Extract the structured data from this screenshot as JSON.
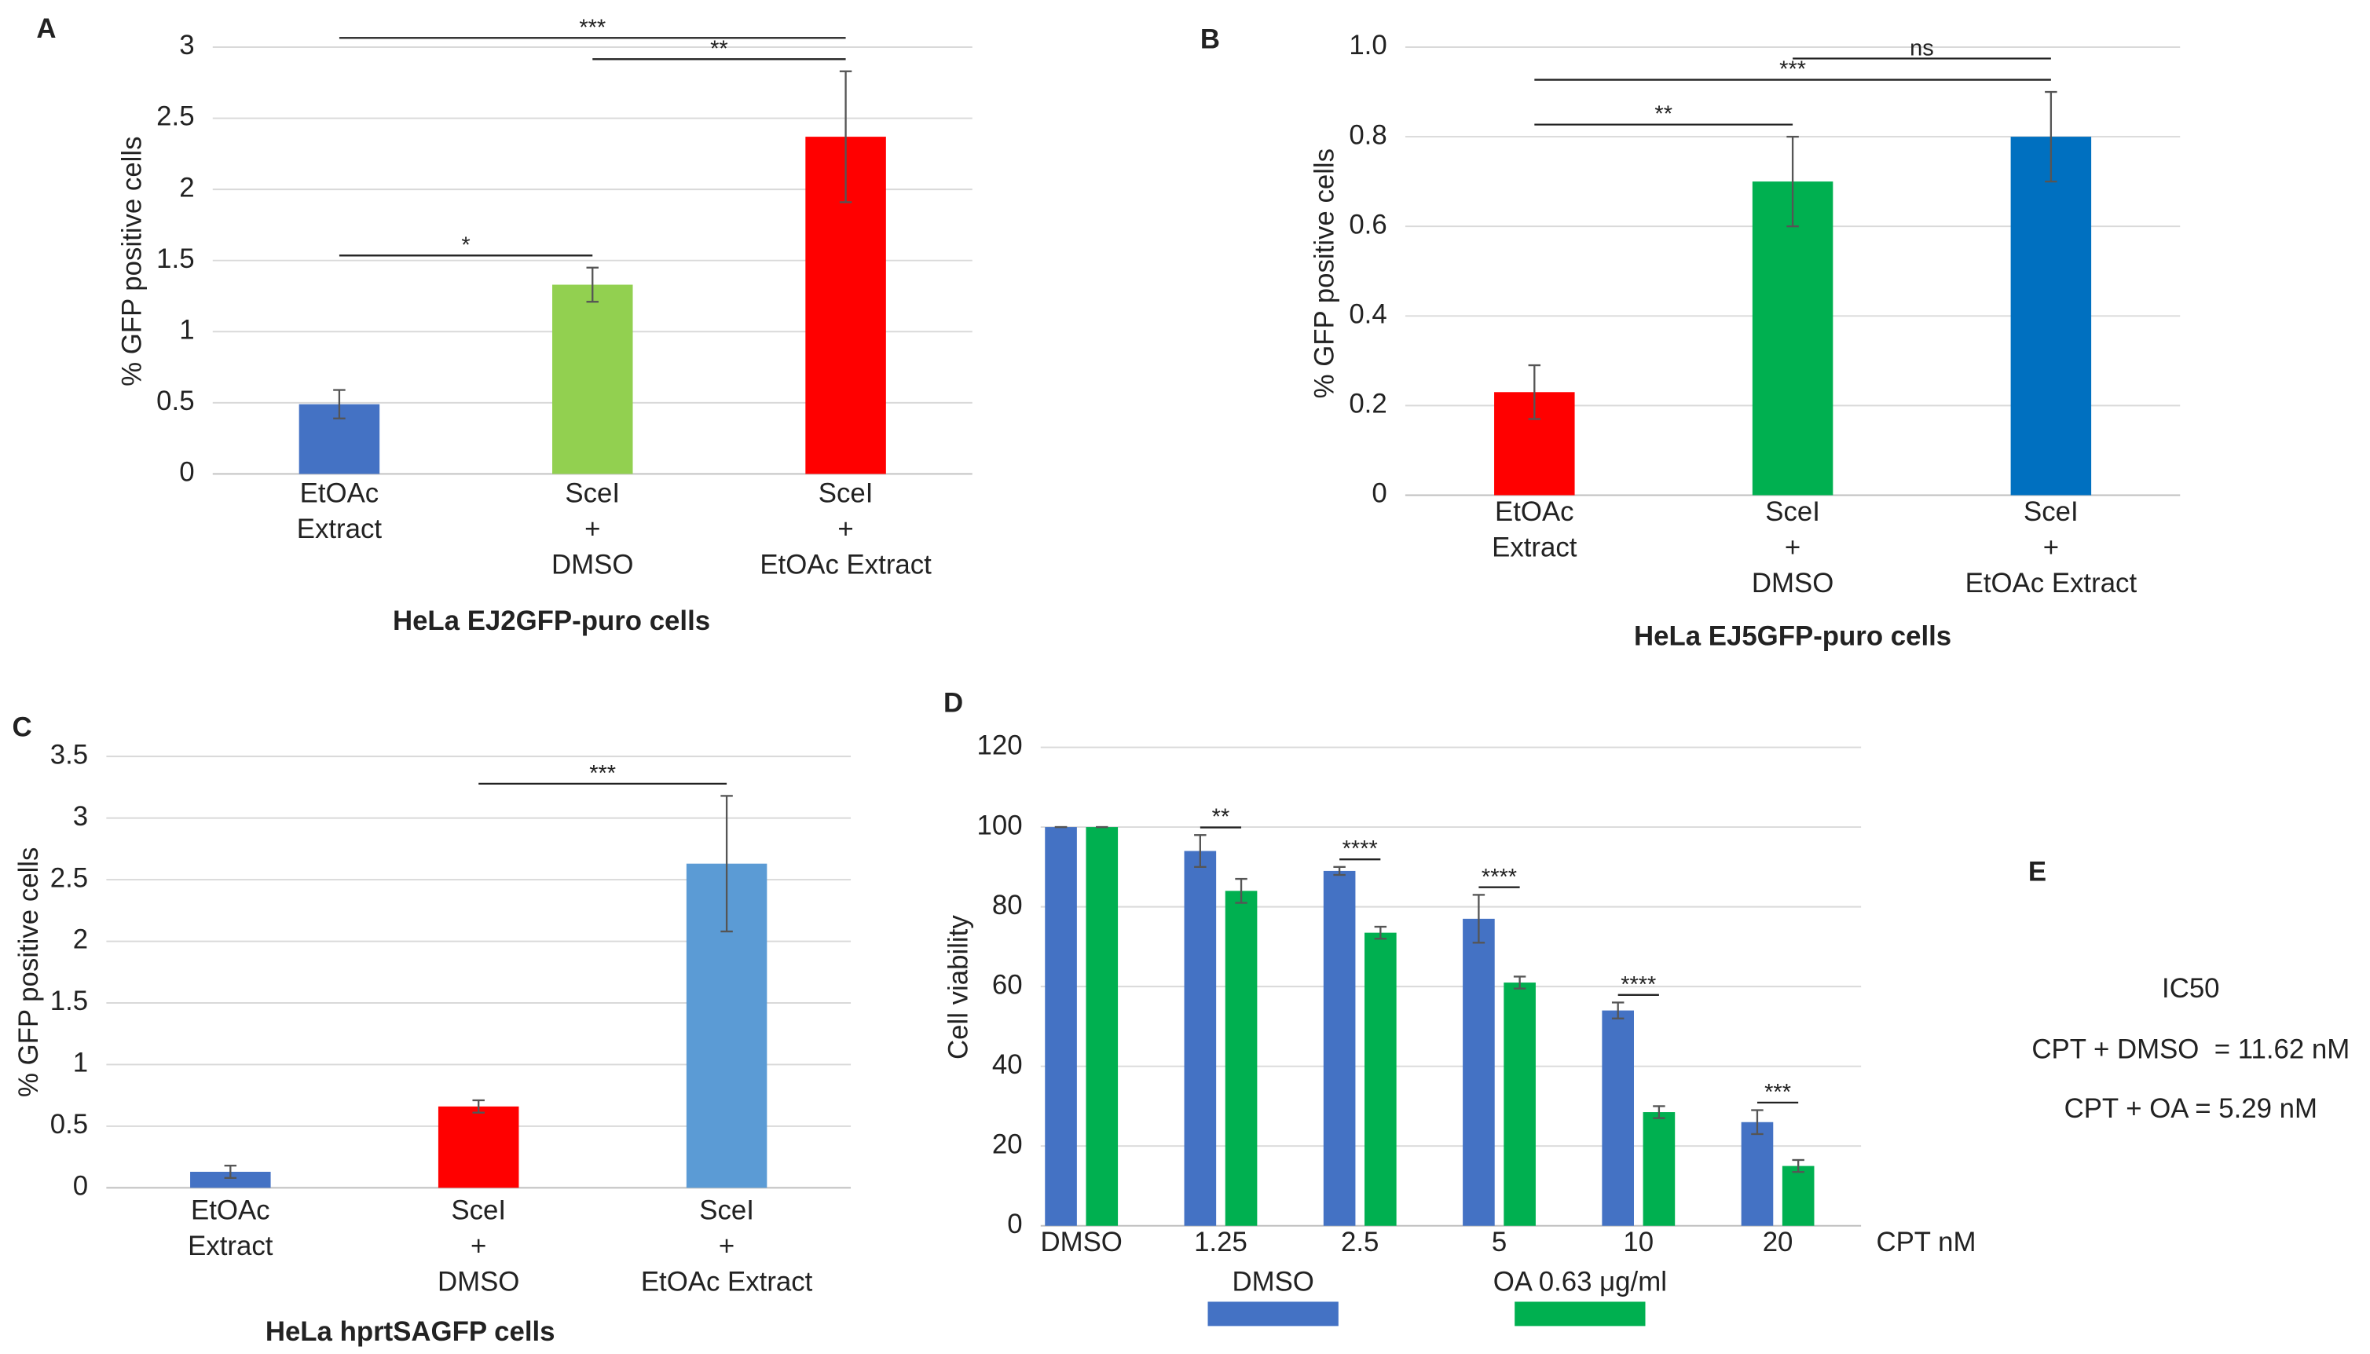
{
  "chart_data": [
    {
      "type": "bar",
      "panel": "A",
      "y_label": "% GFP positive cells",
      "x_label": "HeLa EJ2GFP-puro cells",
      "categories": [
        [
          "EtOAc",
          "Extract"
        ],
        [
          "SceI",
          "+",
          "DMSO"
        ],
        [
          "SceI",
          "+",
          "EtOAc Extract"
        ]
      ],
      "values": [
        0.49,
        1.33,
        2.37
      ],
      "errors": [
        0.1,
        0.12,
        0.46
      ],
      "colors": [
        "#4472c4",
        "#92d050",
        "#ff0000"
      ],
      "ylim": [
        0,
        3
      ],
      "yticks": [
        0,
        0.5,
        1,
        1.5,
        2,
        2.5,
        3
      ],
      "grid": true,
      "comparisons": [
        {
          "from": 0,
          "to": 1,
          "label": "*"
        },
        {
          "from": 1,
          "to": 2,
          "label": "**"
        },
        {
          "from": 0,
          "to": 2,
          "label": "***"
        }
      ]
    },
    {
      "type": "bar",
      "panel": "B",
      "y_label": "% GFP positive cells",
      "x_label": "HeLa EJ5GFP-puro cells",
      "categories": [
        [
          "EtOAc",
          "Extract"
        ],
        [
          "SceI",
          "+",
          "DMSO"
        ],
        [
          "SceI",
          "+",
          "EtOAc Extract"
        ]
      ],
      "values": [
        0.23,
        0.7,
        0.8
      ],
      "errors": [
        0.06,
        0.1,
        0.1
      ],
      "colors": [
        "#ff0000",
        "#00b050",
        "#0070c0"
      ],
      "ylim": [
        0,
        1
      ],
      "yticks": [
        0,
        0.2,
        0.4,
        0.6,
        0.8,
        {
          "value": 1,
          "label": "1.0"
        }
      ],
      "grid": true,
      "comparisons": [
        {
          "from": 0,
          "to": 1,
          "label": "**"
        },
        {
          "from": 0,
          "to": 2,
          "label": "***"
        },
        {
          "from": 1,
          "to": 2,
          "label": "ns"
        }
      ]
    },
    {
      "type": "bar",
      "panel": "C",
      "y_label": "% GFP positive cells",
      "x_label": "HeLa hprtSAGFP cells",
      "categories": [
        [
          "EtOAc",
          "Extract"
        ],
        [
          "SceI",
          "+",
          "DMSO"
        ],
        [
          "SceI",
          "+",
          "EtOAc Extract"
        ]
      ],
      "values": [
        0.13,
        0.66,
        2.63
      ],
      "errors": [
        0.05,
        0.05,
        0.55
      ],
      "colors": [
        "#4472c4",
        "#ff0000",
        "#5b9bd5"
      ],
      "ylim": [
        0,
        3.5
      ],
      "yticks": [
        0,
        0.5,
        1,
        1.5,
        2,
        2.5,
        3,
        3.5
      ],
      "grid": true,
      "comparisons": [
        {
          "from": 1,
          "to": 2,
          "label": "***"
        }
      ]
    },
    {
      "type": "grouped_bar",
      "panel": "D",
      "y_label": "Cell viability",
      "x_unit": "CPT nM",
      "categories": [
        "DMSO",
        "1.25",
        "2.5",
        "5",
        "10",
        "20"
      ],
      "series": [
        {
          "name": "DMSO",
          "color": "#4472c4",
          "values": [
            100,
            94,
            89,
            77,
            54,
            26
          ],
          "errors": [
            0,
            4,
            1,
            6,
            2,
            3
          ]
        },
        {
          "name": "OA 0.63 μg/ml",
          "color": "#00b050",
          "values": [
            100,
            84,
            73.5,
            61,
            28.5,
            15
          ],
          "errors": [
            0,
            3,
            1.5,
            1.5,
            1.5,
            1.5
          ]
        }
      ],
      "significance": [
        null,
        "**",
        "****",
        "****",
        "****",
        "***"
      ],
      "ylim": [
        0,
        120
      ],
      "yticks": [
        0,
        20,
        40,
        60,
        80,
        100,
        120
      ],
      "grid": true
    }
  ],
  "panel_e": {
    "panel": "E",
    "title": "IC50",
    "lines": [
      "CPT + DMSO  = 11.62 nM",
      "CPT + OA = 5.29 nM"
    ]
  }
}
